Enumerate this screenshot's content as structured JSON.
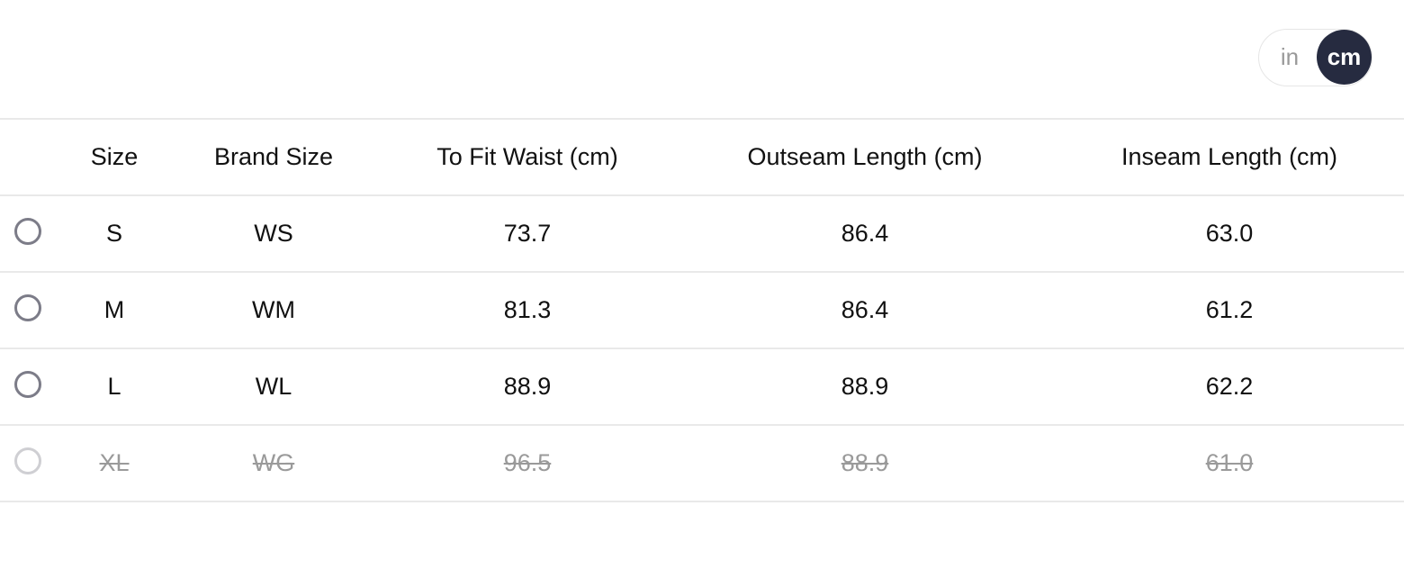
{
  "unit_toggle": {
    "options": [
      "in",
      "cm"
    ],
    "selected": "cm"
  },
  "table": {
    "headers": [
      "Size",
      "Brand Size",
      "To Fit Waist (cm)",
      "Outseam Length (cm)",
      "Inseam Length (cm)"
    ],
    "rows": [
      {
        "cells": [
          "S",
          "WS",
          "73.7",
          "86.4",
          "63.0"
        ],
        "available": true
      },
      {
        "cells": [
          "M",
          "WM",
          "81.3",
          "86.4",
          "61.2"
        ],
        "available": true
      },
      {
        "cells": [
          "L",
          "WL",
          "88.9",
          "88.9",
          "62.2"
        ],
        "available": true
      },
      {
        "cells": [
          "XL",
          "WG",
          "96.5",
          "88.9",
          "61.0"
        ],
        "available": false
      }
    ]
  },
  "colors": {
    "toggle_active": "#262b40",
    "radio": "#7c7c88",
    "disabled_text": "#9a9a9a"
  }
}
